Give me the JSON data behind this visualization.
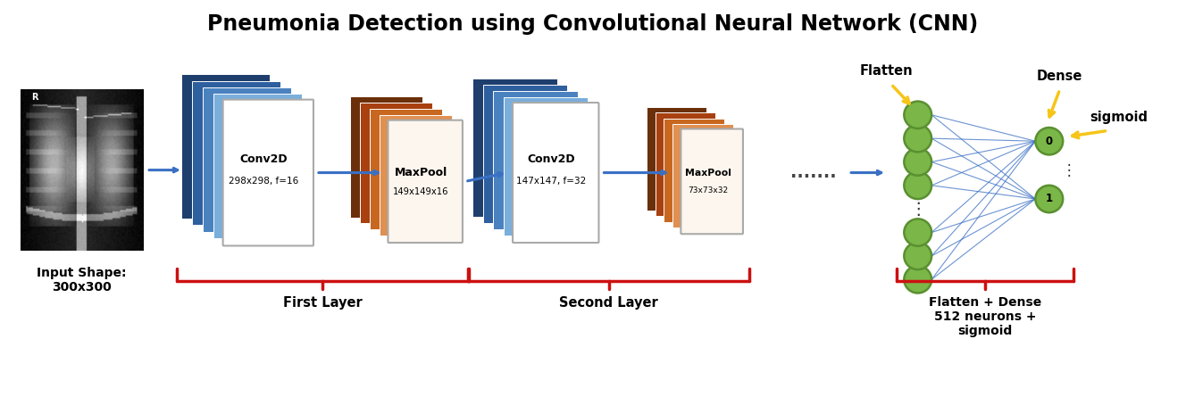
{
  "title": "Pneumonia Detection using Convolutional Neural Network (CNN)",
  "title_fontsize": 17,
  "background_color": "#ffffff",
  "input_label": "Input Shape:\n300x300",
  "conv1_label": "Conv2D\n298x298, f=16",
  "maxpool1_label": "MaxPool\n149x149x16",
  "conv2_label": "Conv2D\n147x147, f=32",
  "maxpool2_label": "MaxPool\n73x73x32",
  "dots_label": ".......",
  "flatten_label": "Flatten",
  "dense_label": "Dense",
  "sigmoid_label": "sigmoid",
  "flatten_dense_label": "Flatten + Dense\n512 neurons +\nsigmoid",
  "first_layer_label": "First Layer",
  "second_layer_label": "Second Layer",
  "blue_colors": [
    "#1e3f6e",
    "#2e5f9e",
    "#4a82c0",
    "#7aaedb",
    "#b0cfe8",
    "#d6e8f5"
  ],
  "orange_colors": [
    "#6b2f0a",
    "#a84010",
    "#c86820",
    "#e09050",
    "#eec090",
    "#f8ddb0"
  ],
  "green_node": "#7ab648",
  "green_border": "#5a9030",
  "arrow_blue": "#3a70c4",
  "arrow_yellow": "#f5c518",
  "red_color": "#cc1010",
  "node_label_0": "0",
  "node_label_1": "1",
  "figw": 13.28,
  "figh": 4.45
}
